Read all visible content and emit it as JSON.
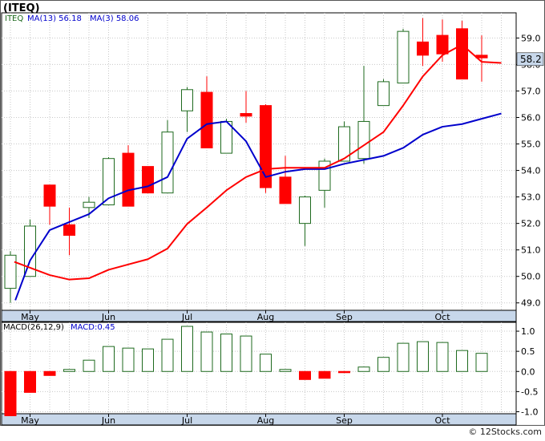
{
  "chart_data": [
    {
      "type": "candlestick",
      "title": "(ITEQ)",
      "legend": [
        {
          "label": "MA(13)",
          "value": "56.18"
        },
        {
          "label": "MA(3)",
          "value": "58.06"
        }
      ],
      "last_price_badge": "58.2",
      "x_tick_labels": [
        "May",
        "Jun",
        "Jul",
        "Aug",
        "Sep",
        "Oct"
      ],
      "x_tick_weeks": [
        1,
        5,
        9,
        13,
        17,
        22
      ],
      "y_ticks": [
        49.0,
        50.0,
        51.0,
        52.0,
        53.0,
        54.0,
        55.0,
        56.0,
        57.0,
        58.0,
        59.0
      ],
      "ylim": [
        48.72,
        59.95
      ],
      "grid": true,
      "colors": {
        "up": "#1e6a1e",
        "down": "#ff0000",
        "ma13": "#0000cc",
        "ma3": "#ff0000",
        "badge": "#c7d7ea"
      },
      "candles": [
        {
          "o": 49.55,
          "h": 50.95,
          "l": 49.0,
          "c": 50.8
        },
        {
          "o": 50.0,
          "h": 52.15,
          "l": 50.0,
          "c": 51.9
        },
        {
          "o": 53.45,
          "h": 53.45,
          "l": 51.95,
          "c": 52.65
        },
        {
          "o": 51.95,
          "h": 52.6,
          "l": 50.8,
          "c": 51.55
        },
        {
          "o": 52.6,
          "h": 53.0,
          "l": 52.2,
          "c": 52.8
        },
        {
          "o": 52.7,
          "h": 54.5,
          "l": 52.7,
          "c": 54.45
        },
        {
          "o": 54.65,
          "h": 54.95,
          "l": 52.65,
          "c": 52.65
        },
        {
          "o": 54.15,
          "h": 54.15,
          "l": 53.15,
          "c": 53.15
        },
        {
          "o": 53.15,
          "h": 55.9,
          "l": 53.15,
          "c": 55.45
        },
        {
          "o": 56.25,
          "h": 57.15,
          "l": 55.45,
          "c": 57.05
        },
        {
          "o": 56.95,
          "h": 57.55,
          "l": 54.85,
          "c": 54.85
        },
        {
          "o": 54.65,
          "h": 55.95,
          "l": 54.65,
          "c": 55.85
        },
        {
          "o": 56.15,
          "h": 57.0,
          "l": 55.8,
          "c": 56.05
        },
        {
          "o": 56.45,
          "h": 56.5,
          "l": 53.15,
          "c": 53.35
        },
        {
          "o": 53.75,
          "h": 54.55,
          "l": 52.75,
          "c": 52.75
        },
        {
          "o": 52.0,
          "h": 53.05,
          "l": 51.15,
          "c": 53.0
        },
        {
          "o": 53.25,
          "h": 54.45,
          "l": 52.6,
          "c": 54.35
        },
        {
          "o": 54.35,
          "h": 55.85,
          "l": 54.35,
          "c": 55.65
        },
        {
          "o": 54.45,
          "h": 57.95,
          "l": 54.25,
          "c": 55.85
        },
        {
          "o": 56.45,
          "h": 57.45,
          "l": 56.45,
          "c": 57.35
        },
        {
          "o": 57.3,
          "h": 59.35,
          "l": 57.3,
          "c": 59.25
        },
        {
          "o": 58.85,
          "h": 59.75,
          "l": 57.95,
          "c": 58.35
        },
        {
          "o": 59.1,
          "h": 59.7,
          "l": 58.1,
          "c": 58.4
        },
        {
          "o": 59.35,
          "h": 59.65,
          "l": 57.45,
          "c": 57.45
        },
        {
          "o": 58.35,
          "h": 59.1,
          "l": 57.35,
          "c": 58.25
        }
      ],
      "ma13": [
        49.1,
        50.6,
        51.75,
        52.05,
        52.35,
        52.95,
        53.25,
        53.4,
        53.75,
        55.2,
        55.75,
        55.85,
        55.1,
        53.75,
        53.95,
        54.05,
        54.05,
        54.25,
        54.4,
        54.55,
        54.85,
        55.35,
        55.65,
        55.75,
        55.95,
        56.15
      ],
      "ma13_weeks": [
        0.25,
        1,
        2,
        3,
        4,
        5,
        6,
        7,
        8,
        9,
        10,
        11,
        12,
        13,
        14,
        15,
        16,
        17,
        18,
        19,
        20,
        21,
        22,
        23,
        24,
        25
      ],
      "ma3": [
        50.55,
        50.05,
        49.88,
        49.93,
        50.25,
        50.45,
        50.65,
        51.05,
        51.98,
        52.6,
        53.25,
        53.75,
        54.05,
        54.1,
        54.1,
        54.1,
        54.45,
        54.95,
        55.45,
        56.45,
        57.55,
        58.35,
        58.75,
        58.1,
        58.06
      ],
      "ma3_weeks": [
        0.2,
        2,
        3,
        4,
        5,
        6,
        7,
        8,
        9,
        10,
        11,
        12,
        13,
        14,
        15,
        16,
        17,
        18,
        19,
        20,
        21,
        22,
        23,
        24,
        25
      ]
    },
    {
      "type": "bar",
      "legend": [
        {
          "label": "MACD(26,12,9)",
          "value": ""
        },
        {
          "label": "MACD",
          "value": "0.45"
        }
      ],
      "y_ticks": [
        1.0,
        0.5,
        0.0,
        -0.5,
        -1.0
      ],
      "ylim": [
        -1.05,
        1.22
      ],
      "grid": true,
      "colors": {
        "positive": "#1e6a1e",
        "negative": "#ff0000"
      },
      "values": [
        -1.1,
        -0.52,
        -0.1,
        0.05,
        0.28,
        0.62,
        0.58,
        0.56,
        0.8,
        1.12,
        0.98,
        0.93,
        0.88,
        0.43,
        0.05,
        -0.2,
        -0.17,
        -0.03,
        0.11,
        0.35,
        0.7,
        0.74,
        0.72,
        0.52,
        0.45
      ]
    }
  ],
  "footer": {
    "credit": "© 12Stocks.com"
  }
}
